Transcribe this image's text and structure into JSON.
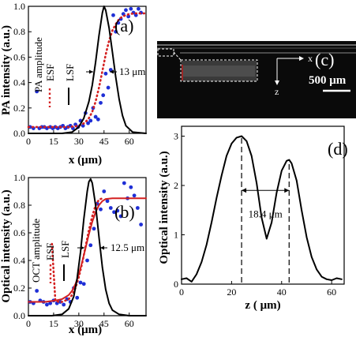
{
  "chart_data": [
    {
      "id": "a",
      "type": "line",
      "panel_label": "(a)",
      "xlabel": "x (μm)",
      "ylabel": "PA intensity (a.u.)",
      "xlim": [
        0,
        70
      ],
      "ylim": [
        0,
        1.0
      ],
      "xticks": [
        0,
        15,
        30,
        45,
        60
      ],
      "yticks": [
        0.0,
        0.2,
        0.4,
        0.6,
        0.8,
        1.0
      ],
      "ytick_labels": [
        "0.0",
        "0.2",
        "0.4",
        "0.6",
        "0.8",
        "1.0"
      ],
      "legend_labels": [
        "PA amplitude",
        "ESF",
        "LSF"
      ],
      "width_annotation": "13 μm",
      "series": [
        {
          "name": "PA amplitude",
          "style": "points",
          "color": "#1f2fd6",
          "x": [
            1,
            3,
            5,
            6.5,
            8,
            9.5,
            11,
            13,
            14.5,
            16,
            17.5,
            19,
            20.5,
            22,
            23.5,
            25,
            26.5,
            28,
            29.5,
            31,
            32.5,
            34,
            35.5,
            37,
            38.5,
            40,
            41.5,
            43,
            44.5,
            46,
            47.5,
            49,
            50.5,
            52,
            53.5,
            55,
            56.5,
            58,
            59.5,
            61,
            62.5,
            64,
            65.5,
            67
          ],
          "y": [
            0.05,
            0.04,
            0.33,
            0.04,
            0.05,
            0.05,
            0.04,
            0.05,
            0.04,
            0.05,
            0.04,
            0.05,
            0.06,
            0.04,
            0.05,
            0.06,
            0.04,
            0.07,
            0.05,
            0.1,
            0.06,
            0.16,
            0.08,
            0.1,
            0.2,
            0.13,
            0.11,
            0.24,
            0.3,
            0.47,
            0.36,
            0.5,
            0.93,
            0.8,
            0.87,
            0.9,
            0.94,
            0.97,
            0.92,
            0.98,
            0.95,
            0.93,
            0.98,
            0.95
          ]
        },
        {
          "name": "ESF",
          "style": "dotted",
          "color": "#d42020",
          "x": [
            0,
            4,
            8,
            12,
            16,
            20,
            24,
            28,
            32,
            34,
            36,
            38,
            40,
            42,
            44,
            46,
            48,
            50,
            52,
            54,
            56,
            58,
            60,
            64,
            68,
            70
          ],
          "y": [
            0.05,
            0.05,
            0.05,
            0.05,
            0.05,
            0.05,
            0.05,
            0.055,
            0.07,
            0.09,
            0.12,
            0.17,
            0.25,
            0.36,
            0.49,
            0.62,
            0.73,
            0.81,
            0.86,
            0.9,
            0.92,
            0.93,
            0.94,
            0.945,
            0.945,
            0.945
          ]
        },
        {
          "name": "LSF",
          "style": "solid",
          "color": "#000000",
          "x": [
            0,
            20,
            26,
            30,
            33,
            36,
            38,
            40,
            42,
            44,
            45,
            46,
            48,
            50,
            52,
            54,
            56,
            58,
            62,
            70
          ],
          "y": [
            0,
            0,
            0.01,
            0.05,
            0.12,
            0.25,
            0.38,
            0.56,
            0.77,
            0.95,
            1.0,
            0.97,
            0.83,
            0.64,
            0.44,
            0.27,
            0.14,
            0.06,
            0.01,
            0
          ]
        }
      ]
    },
    {
      "id": "b",
      "type": "line",
      "panel_label": "(b)",
      "xlabel": "x (μm)",
      "ylabel": "Optical intensity (a.u.)",
      "xlim": [
        0,
        70
      ],
      "ylim": [
        0,
        1.0
      ],
      "xticks": [
        0,
        15,
        30,
        45,
        60
      ],
      "yticks": [
        0.0,
        0.2,
        0.4,
        0.6,
        0.8,
        1.0
      ],
      "ytick_labels": [
        "0.0",
        "0.2",
        "0.4",
        "0.6",
        "0.8",
        "1.0"
      ],
      "legend_labels": [
        "OCT amplitude",
        "ESF",
        "LSF"
      ],
      "width_annotation": "12.5 μm",
      "series": [
        {
          "name": "OCT amplitude",
          "style": "points",
          "color": "#1f2fd6",
          "x": [
            1,
            3,
            5,
            7,
            9,
            11,
            13,
            15,
            17,
            19,
            21,
            23,
            25,
            27,
            29,
            31,
            33,
            35,
            37,
            39,
            41,
            43,
            45,
            47,
            49,
            51,
            53,
            55,
            57,
            59,
            61,
            63,
            65,
            67
          ],
          "y": [
            0.1,
            0.09,
            0.18,
            0.11,
            0.1,
            0.08,
            0.09,
            0.11,
            0.09,
            0.1,
            0.08,
            0.12,
            0.1,
            0.2,
            0.13,
            0.24,
            0.23,
            0.4,
            0.51,
            0.63,
            0.81,
            0.77,
            0.9,
            0.83,
            0.78,
            0.75,
            0.76,
            0.72,
            0.96,
            0.85,
            0.93,
            0.87,
            0.78,
            0.66
          ]
        },
        {
          "name": "ESF",
          "style": "dotted",
          "color": "#d42020",
          "x": [
            14,
            16,
            18,
            20,
            22,
            24,
            26,
            28,
            30,
            32,
            34,
            36,
            38,
            40,
            42,
            44
          ],
          "y": [
            0.52,
            0.11,
            0.1,
            0.1,
            0.11,
            0.12,
            0.15,
            0.2,
            0.28,
            0.38,
            0.5,
            0.62,
            0.72,
            0.8,
            0.84,
            0.85
          ]
        },
        {
          "name": "ESF fit",
          "style": "solid",
          "color": "#d42020",
          "x": [
            0,
            10,
            16,
            20,
            24,
            26,
            28,
            30,
            32,
            34,
            36,
            38,
            40,
            42,
            44,
            46,
            50,
            56,
            62,
            70
          ],
          "y": [
            0.1,
            0.1,
            0.11,
            0.12,
            0.15,
            0.18,
            0.23,
            0.3,
            0.39,
            0.49,
            0.59,
            0.68,
            0.75,
            0.8,
            0.83,
            0.845,
            0.85,
            0.85,
            0.85,
            0.85
          ]
        },
        {
          "name": "LSF",
          "style": "solid",
          "color": "#000000",
          "x": [
            0,
            14,
            20,
            24,
            27,
            29,
            31,
            33,
            35,
            36,
            37,
            38,
            40,
            42,
            44,
            46,
            48,
            50,
            54,
            60,
            70
          ],
          "y": [
            0,
            0,
            0.01,
            0.05,
            0.14,
            0.27,
            0.46,
            0.7,
            0.9,
            0.97,
            0.99,
            0.96,
            0.8,
            0.57,
            0.35,
            0.19,
            0.09,
            0.04,
            0.01,
            0,
            0
          ]
        }
      ]
    },
    {
      "id": "d",
      "type": "line",
      "panel_label": "(d)",
      "xlabel": "z ( μm)",
      "ylabel": "Optical intensity (a.u.)",
      "xlim": [
        0,
        65
      ],
      "ylim": [
        0,
        3.2
      ],
      "xticks": [
        0,
        20,
        40,
        60
      ],
      "yticks": [
        0,
        1,
        2,
        3
      ],
      "ytick_labels": [
        "0",
        "1",
        "2",
        "3"
      ],
      "peak_separation_label": "18.4 μm",
      "peaks": [
        24,
        43
      ],
      "series": [
        {
          "name": "profile",
          "style": "solid",
          "color": "#000000",
          "x": [
            0,
            2,
            4,
            6,
            8,
            10,
            12,
            14,
            16,
            18,
            20,
            22,
            24,
            26,
            28,
            30,
            32,
            34,
            36,
            38,
            40,
            42,
            43,
            44,
            46,
            48,
            50,
            52,
            54,
            56,
            58,
            60,
            62,
            64
          ],
          "y": [
            0.1,
            0.12,
            0.05,
            0.2,
            0.45,
            0.8,
            1.25,
            1.75,
            2.2,
            2.6,
            2.85,
            2.97,
            3.0,
            2.9,
            2.6,
            2.05,
            1.35,
            0.92,
            1.25,
            1.85,
            2.3,
            2.5,
            2.52,
            2.45,
            2.1,
            1.5,
            0.95,
            0.55,
            0.3,
            0.15,
            0.1,
            0.08,
            0.12,
            0.1
          ]
        }
      ]
    }
  ],
  "image_panel": {
    "panel_label": "(c)",
    "axis_x_label": "x",
    "axis_z_label": "z",
    "scale_bar_label": "500 μm"
  }
}
